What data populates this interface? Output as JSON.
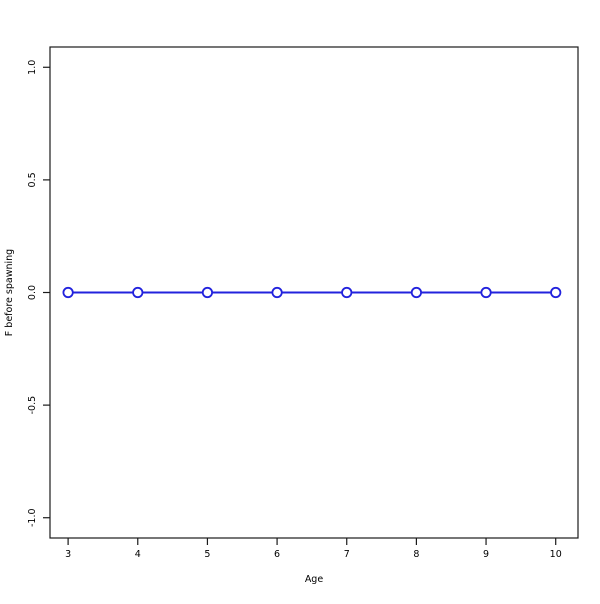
{
  "chart_data": {
    "type": "line",
    "title": "",
    "xlabel": "Age",
    "ylabel": "F before spawning",
    "x": [
      3,
      4,
      5,
      6,
      7,
      8,
      9,
      10
    ],
    "y": [
      0.0,
      0.0,
      0.0,
      0.0,
      0.0,
      0.0,
      0.0,
      0.0
    ],
    "series": [
      {
        "name": "F before spawning",
        "x": [
          3,
          4,
          5,
          6,
          7,
          8,
          9,
          10
        ],
        "y": [
          0.0,
          0.0,
          0.0,
          0.0,
          0.0,
          0.0,
          0.0,
          0.0
        ]
      }
    ],
    "xlim": [
      2.74,
      10.32
    ],
    "ylim": [
      -1.09,
      1.09
    ],
    "xticks": [
      3,
      4,
      5,
      6,
      7,
      8,
      9,
      10
    ],
    "xtick_labels": [
      "3",
      "4",
      "5",
      "6",
      "7",
      "8",
      "9",
      "10"
    ],
    "yticks": [
      -1.0,
      -0.5,
      0.0,
      0.5,
      1.0
    ],
    "ytick_labels": [
      "-1.0",
      "-0.5",
      "0.0",
      "0.5",
      "1.0"
    ],
    "ytick_label_rotation": -90,
    "grid": false,
    "legend": null,
    "line_color": "#2222dd",
    "marker": "open-circle",
    "marker_face_color": "#ffffff",
    "frame_color": "#1a1a1a",
    "background_color": "#ffffff"
  }
}
